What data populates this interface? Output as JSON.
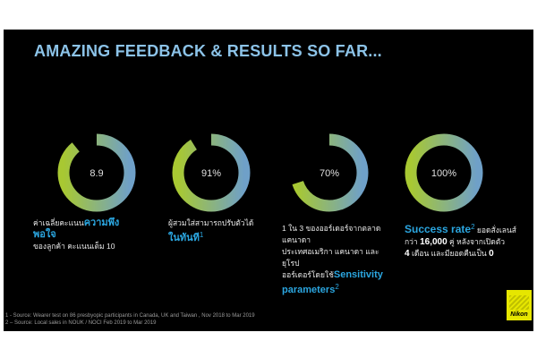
{
  "slide": {
    "title": "AMAZING FEEDBACK & RESULTS SO FAR...",
    "footnote_1": "1 - Source: Wearer test on 86 presbyopic participants in Canada, UK and Taiwan , Nov 2018 to Mar 2019",
    "footnote_2": "2 – Source: Local sales in NOUK / NOCI Feb 2019 to Mar 2019",
    "logo_text": "Nikon"
  },
  "captions": {
    "c1_a": "ค่าเฉลี่ยคะแนน",
    "c1_hl": "ความพึงพอใจ",
    "c1_b": "ของลูกค้า คะแนนเต็ม 10",
    "c2_a": "ผู้สวมใส่สามารถปรับตัวได้",
    "c2_hl": "ในทันที",
    "c2_sup": "1",
    "c3_a": "1 ใน 3 ของออร์เดอร์จากตลาดแคนาดา",
    "c3_b": "ประเทศอเมริกา แคนาดา และ ยุโรป",
    "c3_c": "ออร์เดอร์โดยใช้",
    "c3_hl": "Sensitivity parameters",
    "c3_sup": "2",
    "c4_hl": "Success rate",
    "c4_sup": "2",
    "c4_a": "ยอดสั่งเลนส์",
    "c4_b": "กว่า",
    "c4_num": "16,000",
    "c4_c": "คู่ หลังจากเปิดตัว",
    "c4_d": "4",
    "c4_e": "เดือน และมียอดคืนเป็น",
    "c4_f": "0"
  },
  "chart_data": {
    "type": "donut",
    "items": [
      {
        "label": "8.9",
        "value": 8.9,
        "max": 10
      },
      {
        "label": "91%",
        "value": 91,
        "max": 100
      },
      {
        "label": "70%",
        "value": 70,
        "max": 100
      },
      {
        "label": "100%",
        "value": 100,
        "max": 100
      }
    ],
    "colors": {
      "gradient_top": "#a8c832",
      "gradient_bottom": "#6fa0c8",
      "track": "#000000"
    }
  }
}
